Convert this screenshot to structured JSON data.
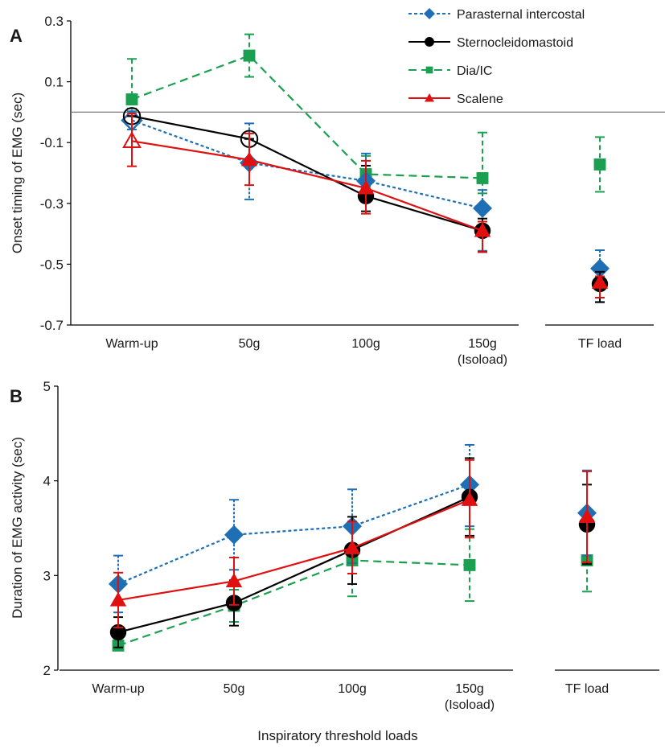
{
  "chart_data": [
    {
      "panel_label": "A",
      "type": "line",
      "title": "",
      "ylabel": "Onset timing of EMG (sec)",
      "xlabel": "",
      "ylim": [
        -0.7,
        0.3
      ],
      "yticks": [
        "0.3",
        "0.1",
        "-0.1",
        "-0.3",
        "-0.5",
        "-0.7"
      ],
      "ytick_values": [
        0.3,
        0.1,
        -0.1,
        -0.3,
        -0.5,
        -0.7
      ],
      "reference_line": 0,
      "categories": [
        "Warm-up",
        "50g",
        "100g",
        "150g\n(Isoload)"
      ],
      "separate_category": "TF load",
      "legend": {
        "placement": "top-right",
        "entries": [
          "Parasternal intercostal",
          "Sternocleidomastoid",
          "Dia/IC",
          "Scalene"
        ]
      },
      "series": [
        {
          "name": "Parasternal intercostal",
          "color": "#1f6fb5",
          "marker": "diamond",
          "line": "short-dash",
          "values": [
            -0.027,
            -0.167,
            -0.226,
            -0.316
          ],
          "err_plus": [
            0.03,
            0.13,
            0.09,
            0.06
          ],
          "err_minus": [
            0.03,
            0.12,
            0.03,
            0.14
          ],
          "hollow": [
            true,
            false,
            false,
            false
          ],
          "tf_value": -0.514,
          "tf_err": [
            0.06,
            0.11
          ]
        },
        {
          "name": "Sternocleidomastoid",
          "color": "#000000",
          "marker": "circle",
          "line": "solid",
          "values": [
            -0.013,
            -0.088,
            -0.276,
            -0.39
          ],
          "err_plus": [
            0.0,
            0.0,
            0.1,
            0.04
          ],
          "err_minus": [
            0.0,
            0.0,
            0.05,
            0.07
          ],
          "hollow": [
            true,
            true,
            false,
            false
          ],
          "tf_value": -0.565,
          "tf_err": [
            0.04,
            0.06
          ]
        },
        {
          "name": "Dia/IC",
          "color": "#1aa050",
          "marker": "square",
          "line": "long-dash",
          "values": [
            0.042,
            0.186,
            -0.204,
            -0.217
          ],
          "err_plus": [
            0.133,
            0.07,
            0.06,
            0.15
          ],
          "err_minus": [
            0.03,
            0.07,
            0.04,
            0.05
          ],
          "hollow": [
            false,
            false,
            false,
            false
          ],
          "tf_value": -0.172,
          "tf_err": [
            0.09,
            0.09
          ]
        },
        {
          "name": "Scalene",
          "color": "#e01010",
          "marker": "triangle",
          "line": "solid",
          "values": [
            -0.095,
            -0.157,
            -0.25,
            -0.39
          ],
          "err_plus": [
            0.09,
            0.087,
            0.09,
            0.03
          ],
          "err_minus": [
            0.083,
            0.083,
            0.084,
            0.07
          ],
          "hollow": [
            true,
            false,
            false,
            false
          ],
          "tf_value": -0.56,
          "tf_err": [
            0.02,
            0.05
          ]
        }
      ]
    },
    {
      "panel_label": "B",
      "type": "line",
      "title": "",
      "ylabel": "Duration of EMG activity (sec)",
      "xlabel": "Inspiratory threshold loads",
      "ylim": [
        2,
        5
      ],
      "yticks": [
        "5",
        "4",
        "3",
        "2"
      ],
      "ytick_values": [
        5,
        4,
        3,
        2
      ],
      "categories": [
        "Warm-up",
        "50g",
        "100g",
        "150g\n(Isoload)"
      ],
      "separate_category": "TF load",
      "series": [
        {
          "name": "Parasternal intercostal",
          "color": "#1f6fb5",
          "marker": "diamond",
          "line": "short-dash",
          "values": [
            2.91,
            3.43,
            3.52,
            3.96
          ],
          "err_plus": [
            0.3,
            0.37,
            0.39,
            0.42
          ],
          "err_minus": [
            0.3,
            0.37,
            0.39,
            0.44
          ],
          "tf_value": 3.66,
          "tf_err": [
            0.45,
            0.45
          ]
        },
        {
          "name": "Sternocleidomastoid",
          "color": "#000000",
          "marker": "circle",
          "line": "solid",
          "values": [
            2.4,
            2.71,
            3.27,
            3.83
          ],
          "err_plus": [
            0.16,
            0.24,
            0.35,
            0.41
          ],
          "err_minus": [
            0.16,
            0.24,
            0.36,
            0.41
          ],
          "tf_value": 3.54,
          "tf_err": [
            0.42,
            0.42
          ]
        },
        {
          "name": "Dia/IC",
          "color": "#1aa050",
          "marker": "square",
          "line": "long-dash",
          "values": [
            2.26,
            2.68,
            3.16,
            3.11
          ],
          "err_plus": [
            0.05,
            0.17,
            0.38,
            0.38
          ],
          "err_minus": [
            0.05,
            0.17,
            0.38,
            0.38
          ],
          "tf_value": 3.16,
          "tf_err": [
            0.33,
            0.33
          ]
        },
        {
          "name": "Scalene",
          "color": "#e01010",
          "marker": "triangle",
          "line": "solid",
          "values": [
            2.74,
            2.94,
            3.29,
            3.8
          ],
          "err_plus": [
            0.29,
            0.25,
            0.28,
            0.42
          ],
          "err_minus": [
            0.29,
            0.25,
            0.27,
            0.4
          ],
          "tf_value": 3.62,
          "tf_err": [
            0.48,
            0.48
          ]
        }
      ]
    }
  ]
}
